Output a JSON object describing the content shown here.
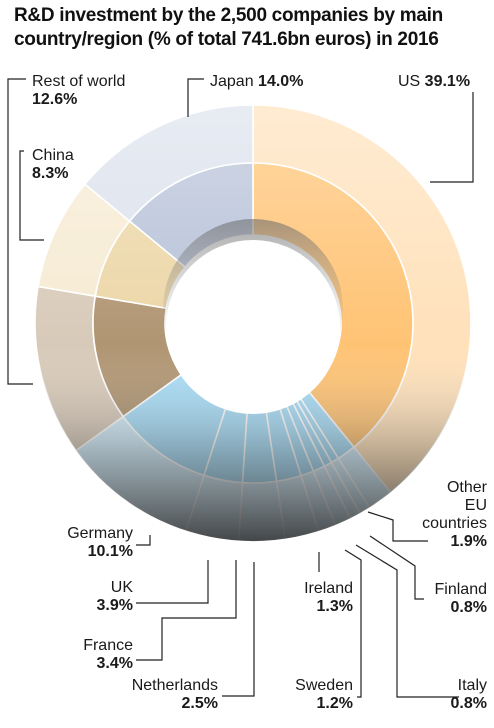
{
  "chart_data": {
    "type": "pie",
    "variant": "donut",
    "title": "R&D investment by the 2,500 companies by main country/region (% of total 741.6bn euros) in 2016",
    "unit": "%",
    "slices": [
      {
        "name": "US",
        "value_label": "39.1%",
        "value": 39.1,
        "color": "#ffc374",
        "group": "US"
      },
      {
        "name": "Other EU countries",
        "value_label": "1.9%",
        "value": 1.9,
        "color": "#a9ddf7",
        "group": "EU"
      },
      {
        "name": "Finland",
        "value_label": "0.8%",
        "value": 0.8,
        "color": "#a9ddf7",
        "group": "EU"
      },
      {
        "name": "Italy",
        "value_label": "0.8%",
        "value": 0.8,
        "color": "#a9ddf7",
        "group": "EU"
      },
      {
        "name": "Sweden",
        "value_label": "1.2%",
        "value": 1.2,
        "color": "#a9ddf7",
        "group": "EU"
      },
      {
        "name": "Ireland",
        "value_label": "1.3%",
        "value": 1.3,
        "color": "#a9ddf7",
        "group": "EU"
      },
      {
        "name": "Netherlands",
        "value_label": "2.5%",
        "value": 2.5,
        "color": "#a9ddf7",
        "group": "EU"
      },
      {
        "name": "France",
        "value_label": "3.4%",
        "value": 3.4,
        "color": "#a9ddf7",
        "group": "EU"
      },
      {
        "name": "UK",
        "value_label": "3.9%",
        "value": 3.9,
        "color": "#a9ddf7",
        "group": "EU"
      },
      {
        "name": "Germany",
        "value_label": "10.1%",
        "value": 10.1,
        "color": "#a9ddf7",
        "group": "EU"
      },
      {
        "name": "Rest of world",
        "value_label": "12.6%",
        "value": 12.6,
        "color": "#b09572",
        "group": "RoW"
      },
      {
        "name": "China",
        "value_label": "8.3%",
        "value": 8.3,
        "color": "#ecd6a6",
        "group": "China"
      },
      {
        "name": "Japan",
        "value_label": "14.0%",
        "value": 14.0,
        "color": "#b7c2d8",
        "group": "Japan"
      }
    ]
  }
}
